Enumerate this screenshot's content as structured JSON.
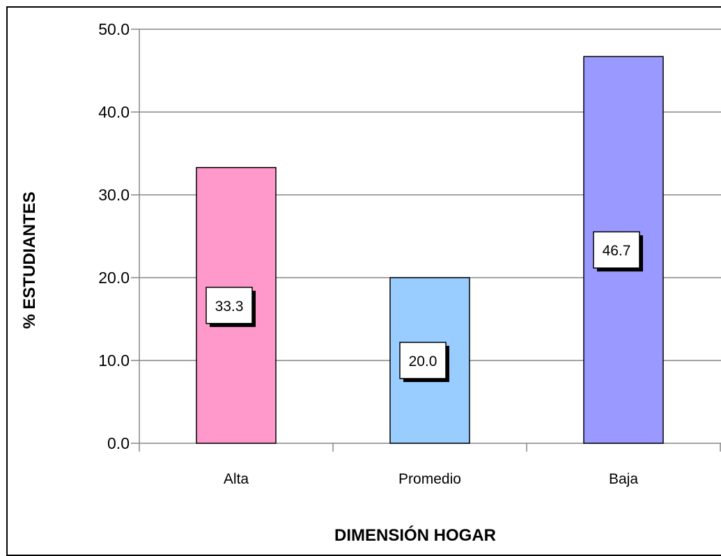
{
  "chart_data": {
    "type": "bar",
    "categories": [
      "Alta",
      "Promedio",
      "Baja"
    ],
    "values": [
      33.3,
      20.0,
      46.7
    ],
    "value_labels": [
      "33.3",
      "20.0",
      "46.7"
    ],
    "bar_colors": [
      "#FF99CC",
      "#99CCFF",
      "#9999FF"
    ],
    "xlabel": "DIMENSIÓN HOGAR",
    "ylabel": "% ESTUDIANTES",
    "ylim": [
      0,
      50
    ],
    "yticks": [
      0,
      10,
      20,
      30,
      40,
      50
    ],
    "ytick_labels": [
      "0.0",
      "10.0",
      "20.0",
      "30.0",
      "40.0",
      "50.0"
    ],
    "grid": true,
    "legend": "none"
  }
}
